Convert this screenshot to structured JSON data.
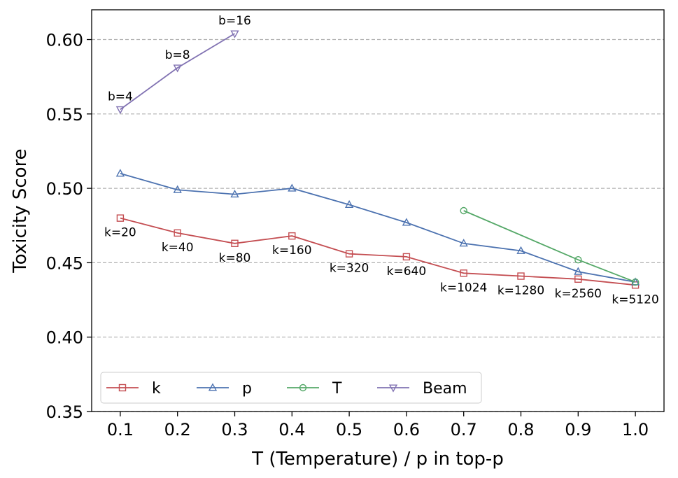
{
  "chart_data": {
    "type": "line",
    "title": "",
    "xlabel": "T (Temperature) / p in top-p",
    "ylabel": "Toxicity Score",
    "xlim": [
      0.05,
      1.05
    ],
    "ylim": [
      0.35,
      0.62
    ],
    "xticks": [
      "0.1",
      "0.2",
      "0.3",
      "0.4",
      "0.5",
      "0.6",
      "0.7",
      "0.8",
      "0.9",
      "1.0"
    ],
    "xtick_values": [
      0.1,
      0.2,
      0.3,
      0.4,
      0.5,
      0.6,
      0.7,
      0.8,
      0.9,
      1.0
    ],
    "yticks": [
      "0.35",
      "0.40",
      "0.45",
      "0.50",
      "0.55",
      "0.60"
    ],
    "ytick_values": [
      0.35,
      0.4,
      0.45,
      0.5,
      0.55,
      0.6
    ],
    "grid": "horizontal dashed",
    "legend_position": "bottom-left",
    "series": [
      {
        "name": "k",
        "color": "#c44e52",
        "marker": "square",
        "x": [
          0.1,
          0.2,
          0.3,
          0.4,
          0.5,
          0.6,
          0.7,
          0.8,
          0.9,
          1.0
        ],
        "y": [
          0.48,
          0.47,
          0.463,
          0.468,
          0.456,
          0.454,
          0.443,
          0.441,
          0.439,
          0.435
        ],
        "point_labels": [
          "k=20",
          "k=40",
          "k=80",
          "k=160",
          "k=320",
          "k=640",
          "k=1024",
          "k=1280",
          "k=2560",
          "k=5120"
        ],
        "label_placement": "below"
      },
      {
        "name": "p",
        "color": "#4c72b0",
        "marker": "triangle-up",
        "x": [
          0.1,
          0.2,
          0.3,
          0.4,
          0.5,
          0.6,
          0.7,
          0.8,
          0.9,
          1.0
        ],
        "y": [
          0.51,
          0.499,
          0.496,
          0.5,
          0.489,
          0.477,
          0.463,
          0.458,
          0.444,
          0.437
        ]
      },
      {
        "name": "T",
        "color": "#55a868",
        "marker": "circle",
        "x": [
          0.7,
          0.9,
          1.0
        ],
        "y": [
          0.485,
          0.452,
          0.437
        ]
      },
      {
        "name": "Beam",
        "color": "#8172b2",
        "marker": "triangle-down",
        "x": [
          0.1,
          0.2,
          0.3
        ],
        "y": [
          0.553,
          0.581,
          0.604
        ],
        "point_labels": [
          "b=4",
          "b=8",
          "b=16"
        ],
        "label_placement": "above"
      }
    ]
  }
}
